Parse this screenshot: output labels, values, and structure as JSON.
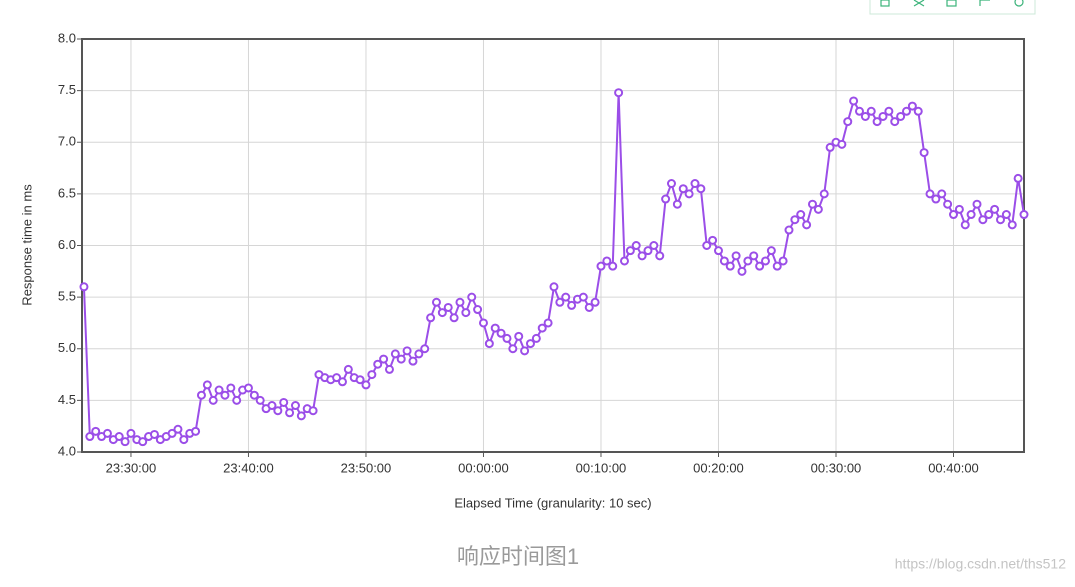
{
  "chart_data": {
    "type": "line",
    "y_label": "Response time in ms",
    "x_label": "Elapsed Time (granularity: 10 sec)",
    "color": "#9b4ee8",
    "grid": true,
    "xlim": [
      "23:25:50",
      "00:46:00"
    ],
    "xticks": [
      "23:30:00",
      "23:40:00",
      "23:50:00",
      "00:00:00",
      "00:10:00",
      "00:20:00",
      "00:30:00",
      "00:40:00"
    ],
    "ylim": [
      4,
      8
    ],
    "yticks": [
      {
        "value": 4,
        "label": "4.0"
      },
      {
        "value": 4.5,
        "label": "4.5"
      },
      {
        "value": 5,
        "label": "5.0"
      },
      {
        "value": 5.5,
        "label": "5.5"
      },
      {
        "value": 6,
        "label": "6.0"
      },
      {
        "value": 6.5,
        "label": "6.5"
      },
      {
        "value": 7,
        "label": "7.0"
      },
      {
        "value": 7.5,
        "label": "7.5"
      },
      {
        "value": 8,
        "label": "8.0"
      }
    ],
    "x": [
      "23:26:00",
      "23:26:30",
      "23:27:00",
      "23:27:30",
      "23:28:00",
      "23:28:30",
      "23:29:00",
      "23:29:30",
      "23:30:00",
      "23:30:30",
      "23:31:00",
      "23:31:30",
      "23:32:00",
      "23:32:30",
      "23:33:00",
      "23:33:30",
      "23:34:00",
      "23:34:30",
      "23:35:00",
      "23:35:30",
      "23:36:00",
      "23:36:30",
      "23:37:00",
      "23:37:30",
      "23:38:00",
      "23:38:30",
      "23:39:00",
      "23:39:30",
      "23:40:00",
      "23:40:30",
      "23:41:00",
      "23:41:30",
      "23:42:00",
      "23:42:30",
      "23:43:00",
      "23:43:30",
      "23:44:00",
      "23:44:30",
      "23:45:00",
      "23:45:30",
      "23:46:00",
      "23:46:30",
      "23:47:00",
      "23:47:30",
      "23:48:00",
      "23:48:30",
      "23:49:00",
      "23:49:30",
      "23:50:00",
      "23:50:30",
      "23:51:00",
      "23:51:30",
      "23:52:00",
      "23:52:30",
      "23:53:00",
      "23:53:30",
      "23:54:00",
      "23:54:30",
      "23:55:00",
      "23:55:30",
      "23:56:00",
      "23:56:30",
      "23:57:00",
      "23:57:30",
      "23:58:00",
      "23:58:30",
      "23:59:00",
      "23:59:30",
      "00:00:00",
      "00:00:30",
      "00:01:00",
      "00:01:30",
      "00:02:00",
      "00:02:30",
      "00:03:00",
      "00:03:30",
      "00:04:00",
      "00:04:30",
      "00:05:00",
      "00:05:30",
      "00:06:00",
      "00:06:30",
      "00:07:00",
      "00:07:30",
      "00:08:00",
      "00:08:30",
      "00:09:00",
      "00:09:30",
      "00:10:00",
      "00:10:30",
      "00:11:00",
      "00:11:30",
      "00:12:00",
      "00:12:30",
      "00:13:00",
      "00:13:30",
      "00:14:00",
      "00:14:30",
      "00:15:00",
      "00:15:30",
      "00:16:00",
      "00:16:30",
      "00:17:00",
      "00:17:30",
      "00:18:00",
      "00:18:30",
      "00:19:00",
      "00:19:30",
      "00:20:00",
      "00:20:30",
      "00:21:00",
      "00:21:30",
      "00:22:00",
      "00:22:30",
      "00:23:00",
      "00:23:30",
      "00:24:00",
      "00:24:30",
      "00:25:00",
      "00:25:30",
      "00:26:00",
      "00:26:30",
      "00:27:00",
      "00:27:30",
      "00:28:00",
      "00:28:30",
      "00:29:00",
      "00:29:30",
      "00:30:00",
      "00:30:30",
      "00:31:00",
      "00:31:30",
      "00:32:00",
      "00:32:30",
      "00:33:00",
      "00:33:30",
      "00:34:00",
      "00:34:30",
      "00:35:00",
      "00:35:30",
      "00:36:00",
      "00:36:30",
      "00:37:00",
      "00:37:30",
      "00:38:00",
      "00:38:30",
      "00:39:00",
      "00:39:30",
      "00:40:00",
      "00:40:30",
      "00:41:00",
      "00:41:30",
      "00:42:00",
      "00:42:30",
      "00:43:00",
      "00:43:30",
      "00:44:00",
      "00:44:30",
      "00:45:00",
      "00:45:30",
      "00:46:00"
    ],
    "values": [
      5.6,
      4.15,
      4.2,
      4.15,
      4.18,
      4.12,
      4.15,
      4.1,
      4.18,
      4.12,
      4.1,
      4.15,
      4.17,
      4.12,
      4.15,
      4.18,
      4.22,
      4.12,
      4.18,
      4.2,
      4.55,
      4.65,
      4.5,
      4.6,
      4.55,
      4.62,
      4.5,
      4.6,
      4.62,
      4.55,
      4.5,
      4.42,
      4.45,
      4.4,
      4.48,
      4.38,
      4.45,
      4.35,
      4.42,
      4.4,
      4.75,
      4.72,
      4.7,
      4.72,
      4.68,
      4.8,
      4.72,
      4.7,
      4.65,
      4.75,
      4.85,
      4.9,
      4.8,
      4.95,
      4.9,
      4.98,
      4.88,
      4.95,
      5.0,
      5.3,
      5.45,
      5.35,
      5.4,
      5.3,
      5.45,
      5.35,
      5.5,
      5.38,
      5.25,
      5.05,
      5.2,
      5.15,
      5.1,
      5.0,
      5.12,
      4.98,
      5.05,
      5.1,
      5.2,
      5.25,
      5.6,
      5.45,
      5.5,
      5.42,
      5.48,
      5.5,
      5.4,
      5.45,
      5.8,
      5.85,
      5.8,
      7.48,
      5.85,
      5.95,
      6.0,
      5.9,
      5.95,
      6.0,
      5.9,
      6.45,
      6.6,
      6.4,
      6.55,
      6.5,
      6.6,
      6.55,
      6.0,
      6.05,
      5.95,
      5.85,
      5.8,
      5.9,
      5.75,
      5.85,
      5.9,
      5.8,
      5.85,
      5.95,
      5.8,
      5.85,
      6.15,
      6.25,
      6.3,
      6.2,
      6.4,
      6.35,
      6.5,
      6.95,
      7.0,
      6.98,
      7.2,
      7.4,
      7.3,
      7.25,
      7.3,
      7.2,
      7.25,
      7.3,
      7.2,
      7.25,
      7.3,
      7.35,
      7.3,
      6.9,
      6.5,
      6.45,
      6.5,
      6.4,
      6.3,
      6.35,
      6.2,
      6.3,
      6.4,
      6.25,
      6.3,
      6.35,
      6.25,
      6.3,
      6.2,
      6.65,
      6.3
    ]
  },
  "caption": "响应时间图1",
  "watermark": "https://blog.csdn.net/ths512"
}
